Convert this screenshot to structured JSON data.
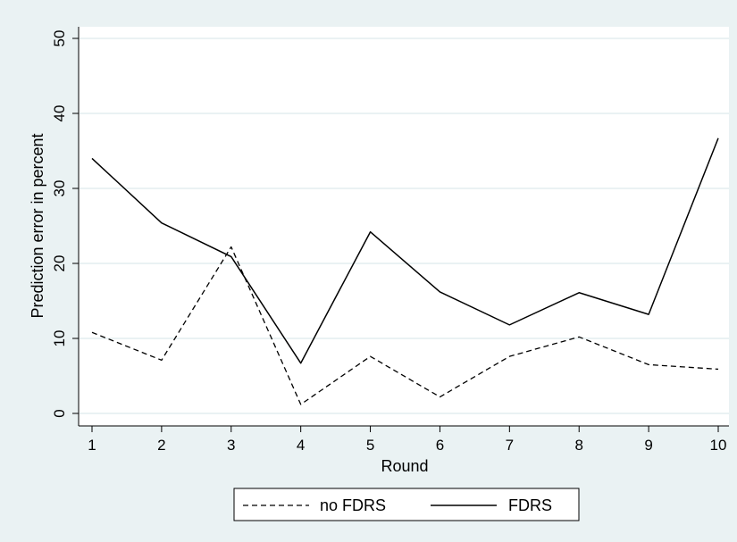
{
  "chart_data": {
    "type": "line",
    "title": "",
    "xlabel": "Round",
    "ylabel": "Prediction error in percent",
    "x": [
      1,
      2,
      3,
      4,
      5,
      6,
      7,
      8,
      9,
      10
    ],
    "xlim": [
      1,
      10
    ],
    "ylim": [
      0,
      50
    ],
    "x_ticks": [
      1,
      2,
      3,
      4,
      5,
      6,
      7,
      8,
      9,
      10
    ],
    "y_ticks": [
      0,
      10,
      20,
      30,
      40,
      50
    ],
    "grid": true,
    "legend_position": "bottom",
    "series": [
      {
        "name": "no FDRS",
        "style": "dashed",
        "values": [
          10.8,
          7.1,
          22.2,
          1.2,
          7.6,
          2.2,
          7.6,
          10.2,
          6.5,
          5.9
        ]
      },
      {
        "name": "FDRS",
        "style": "solid",
        "values": [
          34.0,
          25.4,
          20.9,
          6.7,
          24.2,
          16.2,
          11.8,
          16.1,
          13.2,
          36.7
        ]
      }
    ],
    "colors": {
      "background": "#eaf2f3",
      "plot_background": "#ffffff",
      "grid": "#eaf2f3",
      "line": "#000000"
    }
  }
}
